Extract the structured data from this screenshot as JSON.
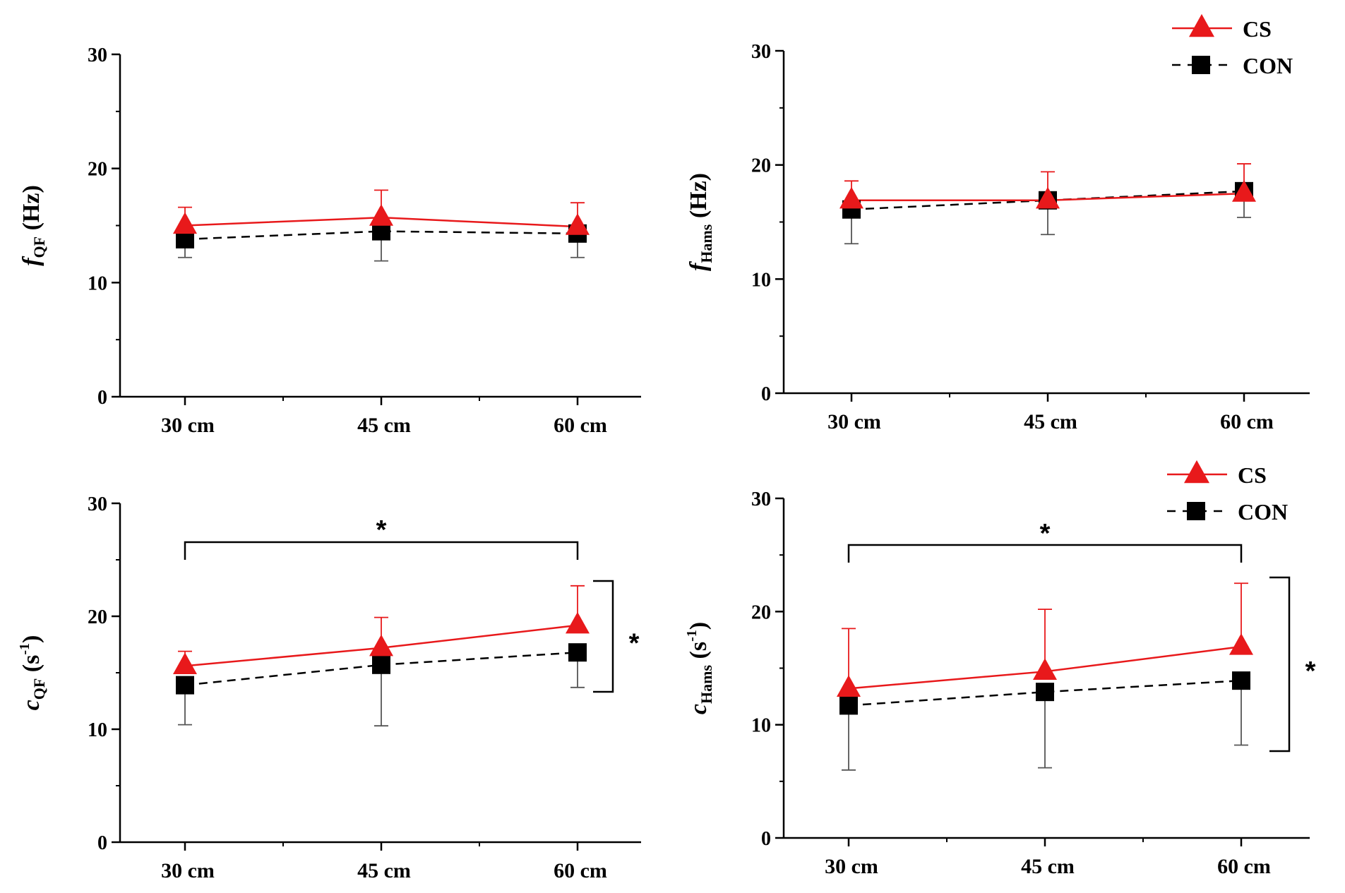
{
  "colors": {
    "cs": "#e8191b",
    "con": "#000000",
    "axis": "#000000",
    "errbar_cs": "#e8191b",
    "errbar_con": "#555555"
  },
  "chart_data": [
    {
      "id": "fQF",
      "type": "line",
      "categories": [
        "30 cm",
        "45 cm",
        "60 cm"
      ],
      "ylabel": {
        "main": "f",
        "sub": "QF",
        "unit": "(Hz)"
      },
      "ylim": [
        0,
        30
      ],
      "yticks": [
        "0",
        "10",
        "20",
        "30"
      ],
      "series": [
        {
          "name": "CS",
          "values": [
            15.0,
            15.7,
            14.9
          ],
          "err": [
            1.6,
            2.4,
            2.1
          ]
        },
        {
          "name": "CON",
          "values": [
            13.8,
            14.5,
            14.3
          ],
          "err": [
            1.6,
            2.6,
            2.1
          ]
        }
      ],
      "legend": null,
      "brackets": []
    },
    {
      "id": "fHams",
      "type": "line",
      "categories": [
        "30 cm",
        "45 cm",
        "60 cm"
      ],
      "ylabel": {
        "main": "f",
        "sub": "Hams",
        "unit": "(Hz)"
      },
      "ylim": [
        0,
        30
      ],
      "yticks": [
        "0",
        "10",
        "20",
        "30"
      ],
      "series": [
        {
          "name": "CS",
          "values": [
            16.9,
            16.9,
            17.5
          ],
          "err": [
            1.7,
            2.5,
            2.6
          ]
        },
        {
          "name": "CON",
          "values": [
            16.1,
            16.9,
            17.7
          ],
          "err": [
            3.0,
            3.0,
            2.3
          ]
        }
      ],
      "legend": {
        "position": "top-right",
        "items": [
          "CS",
          "CON"
        ]
      },
      "brackets": []
    },
    {
      "id": "cQF",
      "type": "line",
      "categories": [
        "30 cm",
        "45 cm",
        "60 cm"
      ],
      "ylabel": {
        "main": "c",
        "sub": "QF",
        "unit": "(s",
        "sup": "-1",
        "close": ")"
      },
      "ylim": [
        0,
        30
      ],
      "yticks": [
        "0",
        "10",
        "20",
        "30"
      ],
      "series": [
        {
          "name": "CS",
          "values": [
            15.6,
            17.2,
            19.2
          ],
          "err": [
            1.3,
            2.7,
            3.5
          ]
        },
        {
          "name": "CON",
          "values": [
            13.9,
            15.7,
            16.8
          ],
          "err": [
            3.5,
            5.4,
            3.1
          ]
        }
      ],
      "legend": null,
      "brackets": [
        {
          "orientation": "horizontal",
          "label": "*"
        },
        {
          "orientation": "vertical",
          "label": "*"
        }
      ]
    },
    {
      "id": "cHams",
      "type": "line",
      "categories": [
        "30 cm",
        "45 cm",
        "60 cm"
      ],
      "ylabel": {
        "main": "c",
        "sub": "Hams",
        "unit": "(s",
        "sup": "-1",
        "close": ")"
      },
      "ylim": [
        0,
        30
      ],
      "yticks": [
        "0",
        "10",
        "20",
        "30"
      ],
      "series": [
        {
          "name": "CS",
          "values": [
            13.2,
            14.7,
            16.9
          ],
          "err": [
            5.3,
            5.5,
            5.6
          ]
        },
        {
          "name": "CON",
          "values": [
            11.7,
            12.9,
            13.9
          ],
          "err": [
            5.7,
            6.7,
            5.7
          ]
        }
      ],
      "legend": {
        "position": "top-right",
        "items": [
          "CS",
          "CON"
        ]
      },
      "brackets": [
        {
          "orientation": "horizontal",
          "label": "*"
        },
        {
          "orientation": "vertical",
          "label": "*"
        }
      ]
    }
  ]
}
